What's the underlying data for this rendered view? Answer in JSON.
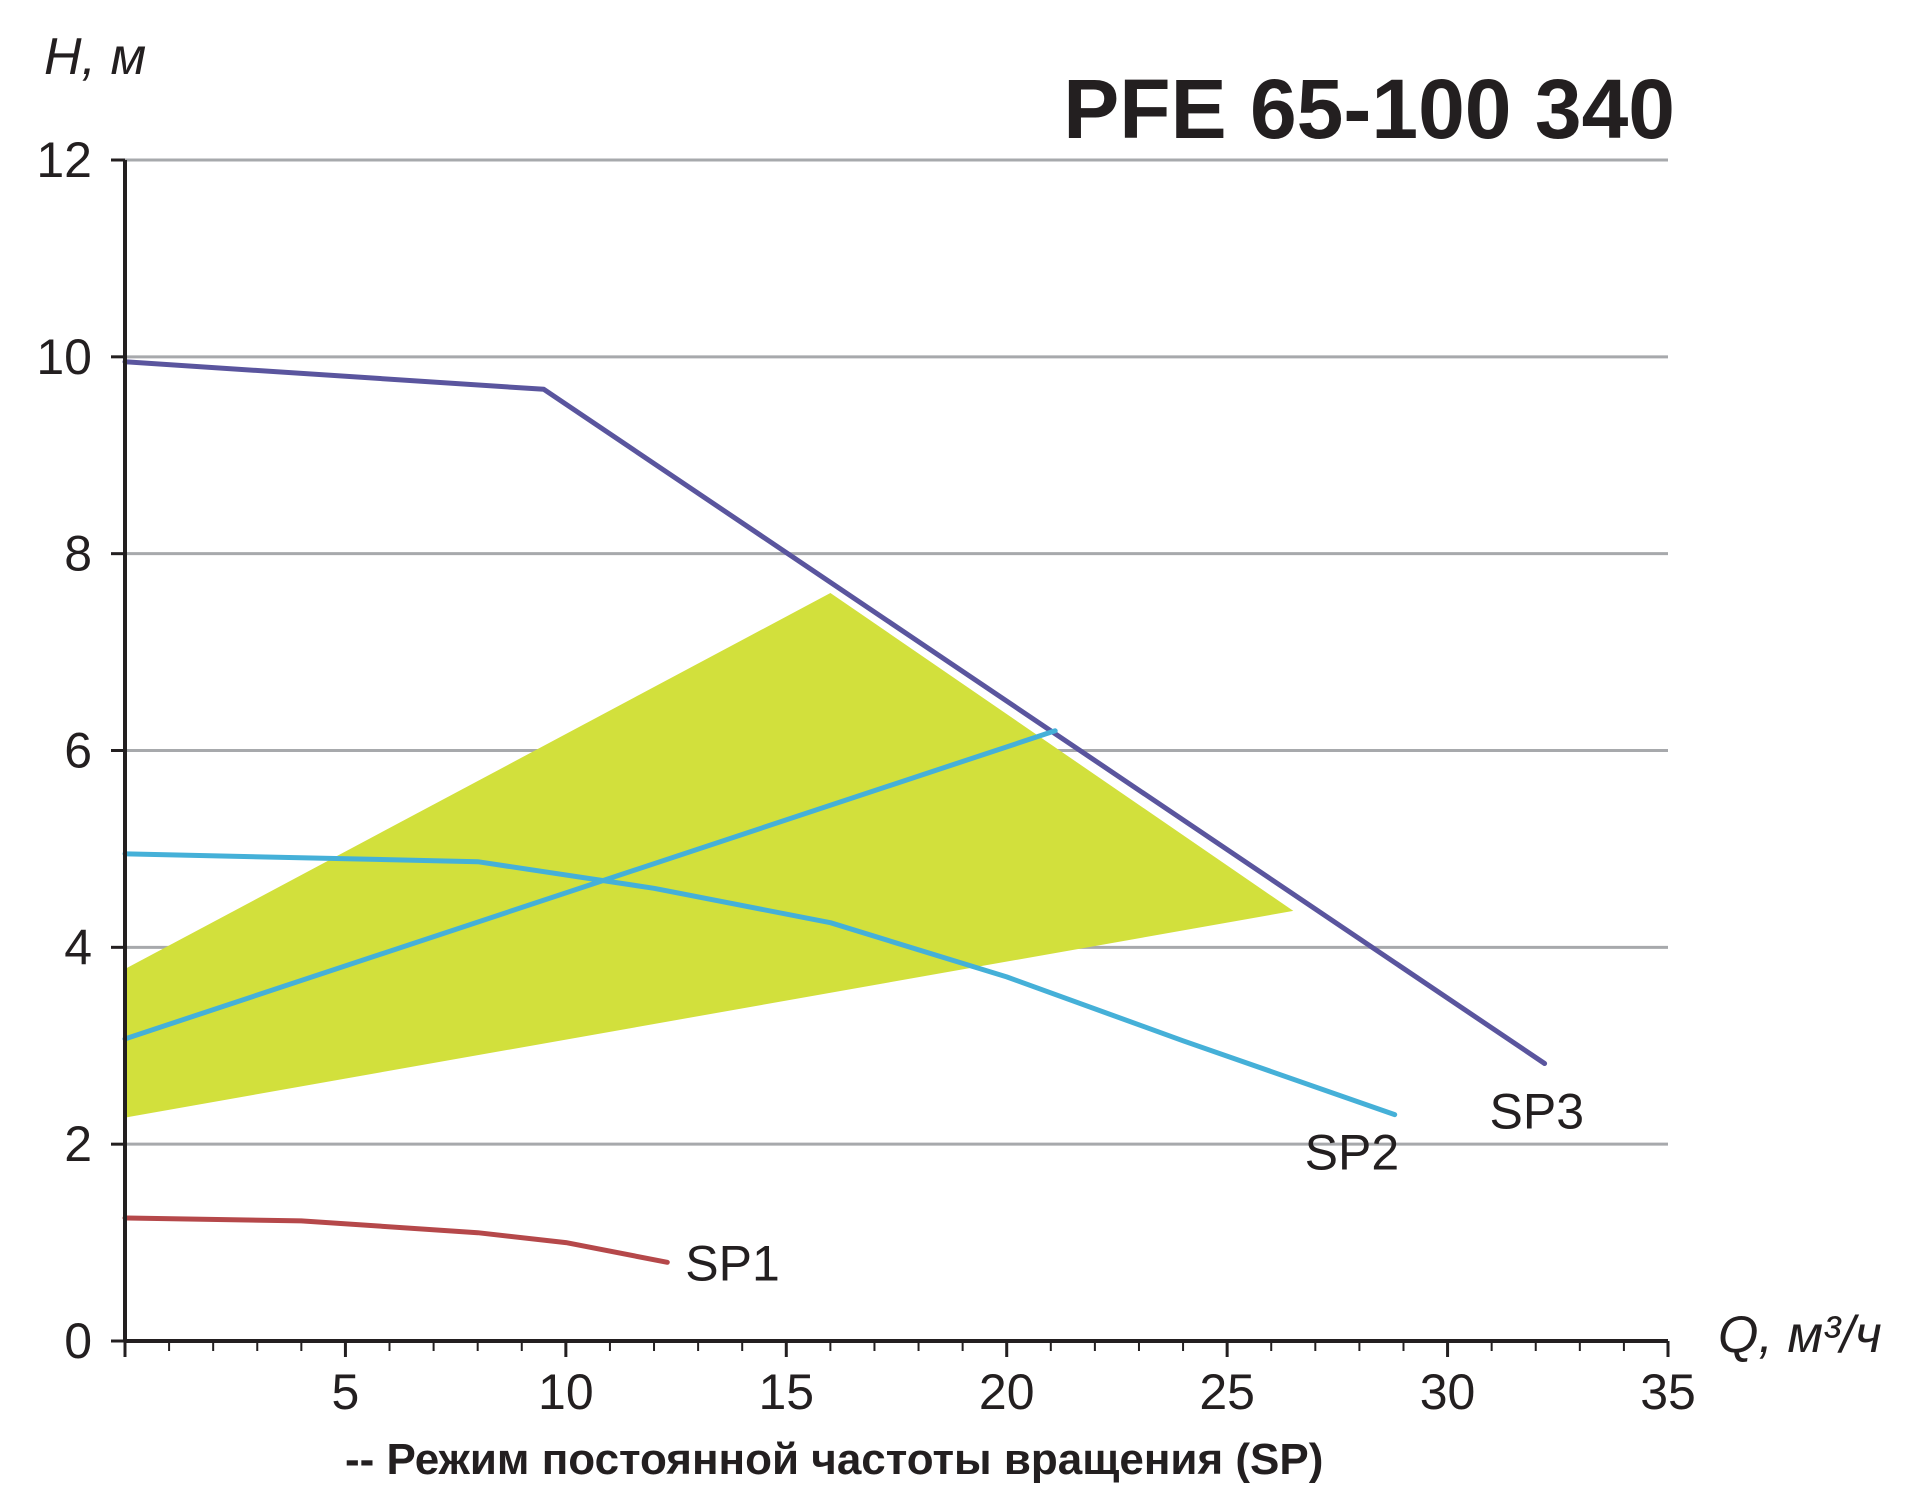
{
  "chart_data": {
    "type": "line",
    "title": "PFE 65-100 340",
    "ylabel": "H, м",
    "xlabel": "Q, м³/ч",
    "caption": "-- Режим постоянной частоты вращения (SP)",
    "xlim": [
      0,
      35
    ],
    "ylim": [
      0,
      12
    ],
    "x_ticks": [
      "5",
      "10",
      "15",
      "20",
      "25",
      "30",
      "35"
    ],
    "y_ticks": [
      "0",
      "2",
      "4",
      "6",
      "8",
      "10",
      "12"
    ],
    "grid": "horizontal",
    "series": [
      {
        "name": "SP1",
        "color": "#b5484a",
        "points": [
          [
            0,
            1.25
          ],
          [
            4,
            1.22
          ],
          [
            8,
            1.1
          ],
          [
            10,
            1.0
          ],
          [
            12.3,
            0.8
          ]
        ]
      },
      {
        "name": "SP2",
        "color": "#45b0d8",
        "points": [
          [
            0,
            4.95
          ],
          [
            8,
            4.87
          ],
          [
            12,
            4.6
          ],
          [
            16,
            4.25
          ],
          [
            20,
            3.7
          ],
          [
            24,
            3.05
          ],
          [
            28.8,
            2.3
          ]
        ]
      },
      {
        "name": "SP3",
        "color": "#5a559e",
        "points": [
          [
            0,
            9.95
          ],
          [
            9.5,
            9.67
          ],
          [
            21,
            6.2
          ],
          [
            32.2,
            2.82
          ]
        ]
      }
    ],
    "extra_lines": [
      {
        "color": "#45b0d8",
        "points": [
          [
            0,
            3.07
          ],
          [
            21.1,
            6.2
          ]
        ]
      }
    ],
    "regions": [
      {
        "color": "#d2e03c",
        "points": [
          [
            0,
            3.78
          ],
          [
            16,
            7.6
          ],
          [
            26.5,
            4.37
          ],
          [
            0,
            2.27
          ]
        ]
      }
    ]
  }
}
